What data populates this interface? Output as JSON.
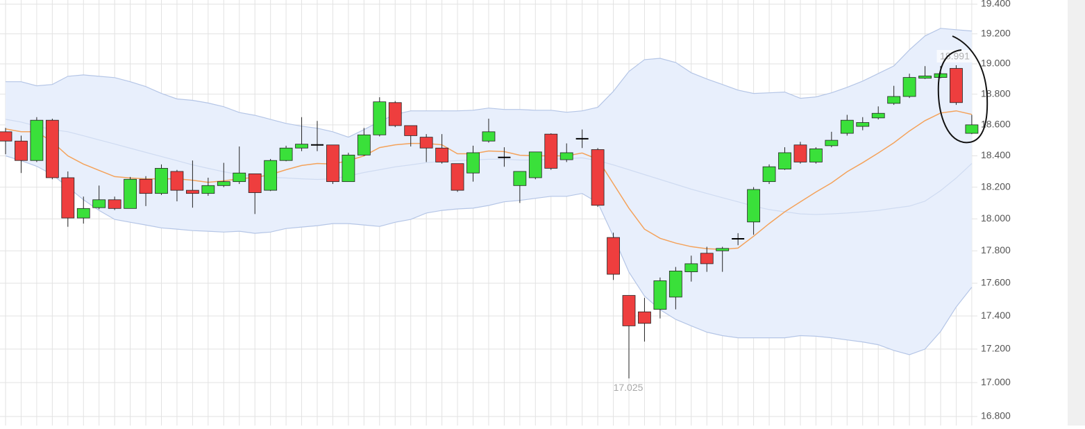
{
  "chart_data": {
    "type": "candlestick",
    "log_scale": true,
    "grid": true,
    "up_color": "#3ae03a",
    "down_color": "#ee3e3e",
    "doji_color": "#000000",
    "ylim": [
      16.8,
      19.4
    ],
    "yticks": [
      {
        "value": 19.4,
        "label": "19.400"
      },
      {
        "value": 19.2,
        "label": "19.200"
      },
      {
        "value": 19.0,
        "label": "19.000"
      },
      {
        "value": 18.8,
        "label": "18.800"
      },
      {
        "value": 18.6,
        "label": "18.600"
      },
      {
        "value": 18.4,
        "label": "18.400"
      },
      {
        "value": 18.2,
        "label": "18.200"
      },
      {
        "value": 18.0,
        "label": "18.000"
      },
      {
        "value": 17.8,
        "label": "17.800"
      },
      {
        "value": 17.6,
        "label": "17.600"
      },
      {
        "value": 17.4,
        "label": "17.400"
      },
      {
        "value": 17.2,
        "label": "17.200"
      },
      {
        "value": 17.0,
        "label": "17.000"
      },
      {
        "value": 16.8,
        "label": "16.800"
      }
    ],
    "open": [
      18.555,
      18.495,
      18.37,
      18.63,
      18.26,
      18.005,
      18.07,
      18.12,
      18.065,
      18.25,
      18.16,
      18.3,
      18.18,
      18.16,
      18.21,
      18.235,
      18.285,
      18.18,
      18.37,
      18.45,
      18.47,
      18.47,
      18.235,
      18.405,
      18.535,
      18.745,
      18.595,
      18.52,
      18.45,
      18.35,
      18.29,
      18.495,
      18.39,
      18.21,
      18.26,
      18.54,
      18.375,
      18.51,
      18.44,
      17.883,
      17.525,
      17.425,
      17.44,
      17.515,
      17.67,
      17.785,
      17.8,
      17.875,
      17.98,
      18.235,
      18.315,
      18.47,
      18.36,
      18.465,
      18.545,
      18.59,
      18.645,
      18.74,
      18.785,
      18.905,
      18.91,
      18.97,
      18.545
    ],
    "high": [
      18.58,
      18.53,
      18.65,
      18.64,
      18.3,
      18.14,
      18.21,
      18.14,
      18.265,
      18.27,
      18.345,
      18.31,
      18.37,
      18.26,
      18.355,
      18.46,
      18.285,
      18.38,
      18.465,
      18.65,
      18.625,
      18.47,
      18.42,
      18.58,
      18.78,
      18.755,
      18.595,
      18.54,
      18.54,
      18.35,
      18.465,
      18.64,
      18.455,
      18.3,
      18.425,
      18.545,
      18.48,
      18.57,
      18.45,
      17.913,
      17.525,
      17.51,
      17.635,
      17.7,
      17.77,
      17.825,
      17.825,
      17.91,
      18.2,
      18.345,
      18.455,
      18.49,
      18.455,
      18.555,
      18.665,
      18.65,
      18.72,
      18.855,
      18.935,
      18.985,
      18.985,
      18.991,
      18.665
    ],
    "low": [
      18.41,
      18.29,
      18.36,
      18.25,
      17.95,
      17.97,
      18.06,
      18.055,
      18.065,
      18.08,
      18.15,
      18.11,
      18.07,
      18.145,
      18.2,
      18.22,
      18.03,
      18.175,
      18.365,
      18.43,
      18.43,
      18.22,
      18.235,
      18.4,
      18.525,
      18.585,
      18.46,
      18.36,
      18.35,
      18.17,
      18.235,
      18.485,
      18.33,
      18.1,
      18.25,
      18.31,
      18.36,
      18.45,
      18.075,
      17.62,
      17.025,
      17.245,
      17.385,
      17.44,
      17.61,
      17.67,
      17.67,
      17.835,
      17.9,
      18.22,
      18.31,
      18.35,
      18.35,
      18.455,
      18.53,
      18.565,
      18.635,
      18.73,
      18.775,
      18.9,
      18.905,
      18.73,
      18.54
    ],
    "close": [
      18.495,
      18.37,
      18.63,
      18.26,
      18.005,
      18.065,
      18.12,
      18.065,
      18.25,
      18.16,
      18.32,
      18.18,
      18.16,
      18.21,
      18.235,
      18.29,
      18.165,
      18.37,
      18.45,
      18.475,
      18.47,
      18.235,
      18.405,
      18.535,
      18.75,
      18.595,
      18.53,
      18.45,
      18.36,
      18.18,
      18.42,
      18.555,
      18.39,
      18.3,
      18.425,
      18.32,
      18.42,
      18.51,
      18.085,
      17.655,
      17.34,
      17.355,
      17.615,
      17.675,
      17.72,
      17.72,
      17.815,
      17.875,
      18.185,
      18.33,
      18.42,
      18.36,
      18.445,
      18.5,
      18.63,
      18.615,
      18.675,
      18.785,
      18.91,
      18.92,
      18.935,
      18.745,
      18.6
    ],
    "moving_average": {
      "color": "#f4a25a",
      "values": [
        18.573,
        18.555,
        18.555,
        18.489,
        18.4,
        18.347,
        18.307,
        18.267,
        18.258,
        18.253,
        18.253,
        18.253,
        18.244,
        18.231,
        18.24,
        18.253,
        18.262,
        18.28,
        18.311,
        18.338,
        18.351,
        18.347,
        18.369,
        18.4,
        18.453,
        18.471,
        18.48,
        18.48,
        18.471,
        18.413,
        18.413,
        18.431,
        18.427,
        18.404,
        18.4,
        18.4,
        18.4,
        18.418,
        18.378,
        18.222,
        18.067,
        17.935,
        17.878,
        17.848,
        17.826,
        17.813,
        17.809,
        17.817,
        17.891,
        17.97,
        18.044,
        18.107,
        18.169,
        18.227,
        18.298,
        18.356,
        18.418,
        18.484,
        18.56,
        18.627,
        18.677,
        18.691,
        18.668
      ]
    },
    "bands": {
      "fill": "#e8effc",
      "color": "#b4c5e6",
      "middle_color": "#cfdbf1",
      "upper": [
        18.882,
        18.882,
        18.855,
        18.864,
        18.918,
        18.927,
        18.918,
        18.909,
        18.882,
        18.85,
        18.805,
        18.769,
        18.76,
        18.742,
        18.718,
        18.68,
        18.662,
        18.636,
        18.609,
        18.591,
        18.578,
        18.555,
        18.52,
        18.569,
        18.622,
        18.668,
        18.691,
        18.691,
        18.691,
        18.691,
        18.695,
        18.709,
        18.7,
        18.7,
        18.695,
        18.695,
        18.682,
        18.691,
        18.714,
        18.818,
        18.95,
        19.028,
        19.037,
        19.009,
        18.941,
        18.9,
        18.864,
        18.827,
        18.805,
        18.809,
        18.814,
        18.773,
        18.782,
        18.809,
        18.845,
        18.886,
        18.936,
        18.986,
        19.093,
        19.186,
        19.237,
        19.228,
        19.219
      ],
      "middle": [
        18.636,
        18.618,
        18.591,
        18.569,
        18.555,
        18.529,
        18.502,
        18.476,
        18.449,
        18.422,
        18.396,
        18.369,
        18.342,
        18.32,
        18.298,
        18.28,
        18.271,
        18.262,
        18.258,
        18.253,
        18.249,
        18.253,
        18.271,
        18.293,
        18.311,
        18.329,
        18.342,
        18.356,
        18.364,
        18.369,
        18.373,
        18.378,
        18.378,
        18.373,
        18.373,
        18.378,
        18.382,
        18.387,
        18.369,
        18.342,
        18.311,
        18.28,
        18.249,
        18.218,
        18.187,
        18.16,
        18.133,
        18.107,
        18.08,
        18.058,
        18.044,
        18.031,
        18.027,
        18.031,
        18.036,
        18.044,
        18.053,
        18.067,
        18.08,
        18.111,
        18.178,
        18.258,
        18.351
      ],
      "lower": [
        18.4,
        18.369,
        18.333,
        18.28,
        18.2,
        18.12,
        18.053,
        17.996,
        17.978,
        17.961,
        17.943,
        17.935,
        17.926,
        17.922,
        17.917,
        17.922,
        17.909,
        17.917,
        17.939,
        17.948,
        17.957,
        17.97,
        17.97,
        17.961,
        17.952,
        17.978,
        17.996,
        18.036,
        18.053,
        18.062,
        18.067,
        18.084,
        18.107,
        18.116,
        18.129,
        18.142,
        18.142,
        18.16,
        18.102,
        17.891,
        17.668,
        17.521,
        17.438,
        17.379,
        17.34,
        17.302,
        17.281,
        17.268,
        17.268,
        17.268,
        17.268,
        17.281,
        17.277,
        17.268,
        17.255,
        17.243,
        17.226,
        17.192,
        17.166,
        17.2,
        17.306,
        17.455,
        17.575
      ]
    },
    "max_label": "18.991",
    "min_label": "17.025"
  }
}
